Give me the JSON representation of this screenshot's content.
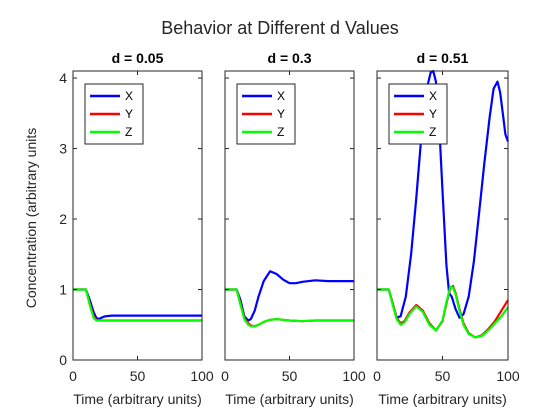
{
  "figure_title": "Behavior at Different d Values",
  "colors": {
    "X": "#0000ff",
    "Y": "#ff0000",
    "Z": "#00ff00",
    "axis": "#262626"
  },
  "chart_data": [
    {
      "type": "line",
      "title": "d = 0.05",
      "xlabel": "Time (arbitrary units)",
      "ylabel": "Concentration (arbitrary units",
      "xlim": [
        0,
        100
      ],
      "ylim": [
        0,
        4.1
      ],
      "xticks": [
        "0",
        "50",
        "100"
      ],
      "yticks": [
        "0",
        "1",
        "2",
        "3",
        "4"
      ],
      "legend_position": "top-left",
      "series": [
        {
          "name": "X",
          "x": [
            0,
            10,
            13,
            16,
            18,
            20,
            22,
            25,
            30,
            40,
            60,
            80,
            100
          ],
          "y": [
            1,
            1,
            0.85,
            0.68,
            0.6,
            0.58,
            0.6,
            0.62,
            0.63,
            0.63,
            0.63,
            0.63,
            0.63
          ]
        },
        {
          "name": "Y",
          "x": [
            0,
            10,
            13,
            16,
            18,
            20,
            22,
            25,
            30,
            40,
            60,
            80,
            100
          ],
          "y": [
            1,
            1,
            0.8,
            0.62,
            0.57,
            0.56,
            0.56,
            0.56,
            0.56,
            0.56,
            0.56,
            0.56,
            0.56
          ]
        },
        {
          "name": "Z",
          "x": [
            0,
            10,
            13,
            16,
            18,
            20,
            22,
            25,
            30,
            40,
            60,
            80,
            100
          ],
          "y": [
            1,
            1,
            0.78,
            0.6,
            0.56,
            0.56,
            0.56,
            0.56,
            0.56,
            0.56,
            0.56,
            0.56,
            0.56
          ]
        }
      ]
    },
    {
      "type": "line",
      "title": "d = 0.3",
      "xlabel": "Time (arbitrary units)",
      "ylabel": "",
      "xlim": [
        0,
        100
      ],
      "ylim": [
        0,
        4.1
      ],
      "xticks": [
        "0",
        "50",
        "100"
      ],
      "yticks": [],
      "legend_position": "top-left",
      "series": [
        {
          "name": "X",
          "x": [
            0,
            9,
            12,
            15,
            18,
            20,
            23,
            26,
            30,
            35,
            40,
            45,
            50,
            55,
            60,
            70,
            80,
            90,
            100
          ],
          "y": [
            1,
            1,
            0.85,
            0.62,
            0.56,
            0.58,
            0.7,
            0.9,
            1.12,
            1.26,
            1.22,
            1.14,
            1.09,
            1.09,
            1.11,
            1.13,
            1.12,
            1.12,
            1.12
          ]
        },
        {
          "name": "Y",
          "x": [
            0,
            9,
            12,
            15,
            18,
            20,
            23,
            26,
            30,
            35,
            40,
            45,
            50,
            60,
            70,
            80,
            90,
            100
          ],
          "y": [
            1,
            1,
            0.8,
            0.6,
            0.52,
            0.49,
            0.48,
            0.5,
            0.54,
            0.57,
            0.58,
            0.57,
            0.56,
            0.55,
            0.56,
            0.56,
            0.56,
            0.56
          ]
        },
        {
          "name": "Z",
          "x": [
            0,
            9,
            12,
            15,
            18,
            20,
            23,
            26,
            30,
            35,
            40,
            45,
            50,
            60,
            70,
            80,
            90,
            100
          ],
          "y": [
            1,
            1,
            0.78,
            0.58,
            0.5,
            0.48,
            0.48,
            0.5,
            0.54,
            0.57,
            0.58,
            0.57,
            0.56,
            0.55,
            0.56,
            0.56,
            0.56,
            0.56
          ]
        }
      ]
    },
    {
      "type": "line",
      "title": "d = 0.51",
      "xlabel": "Time (arbitrary units)",
      "ylabel": "",
      "xlim": [
        0,
        100
      ],
      "ylim": [
        0,
        4.1
      ],
      "xticks": [
        "0",
        "50",
        "100"
      ],
      "yticks": [],
      "legend_position": "top-left",
      "series": [
        {
          "name": "X",
          "x": [
            0,
            9,
            12,
            15,
            18,
            22,
            26,
            30,
            34,
            38,
            41,
            43,
            45,
            47,
            50,
            53,
            55,
            57,
            60,
            63,
            66,
            70,
            74,
            78,
            82,
            86,
            89,
            92,
            94,
            96,
            98,
            100
          ],
          "y": [
            1,
            1,
            0.8,
            0.6,
            0.62,
            0.9,
            1.5,
            2.3,
            3.2,
            3.85,
            4.08,
            4.1,
            3.95,
            3.5,
            2.4,
            1.35,
            0.95,
            0.9,
            0.72,
            0.6,
            0.65,
            0.9,
            1.4,
            2.1,
            2.8,
            3.45,
            3.85,
            3.95,
            3.8,
            3.5,
            3.2,
            3.1
          ]
        },
        {
          "name": "Y",
          "x": [
            0,
            9,
            12,
            15,
            18,
            21,
            25,
            30,
            35,
            40,
            45,
            50,
            53,
            56,
            58,
            60,
            63,
            66,
            70,
            75,
            80,
            85,
            90,
            95,
            100
          ],
          "y": [
            1,
            1,
            0.8,
            0.6,
            0.52,
            0.55,
            0.68,
            0.78,
            0.7,
            0.52,
            0.42,
            0.55,
            0.8,
            1.02,
            1.05,
            0.95,
            0.72,
            0.52,
            0.38,
            0.32,
            0.35,
            0.44,
            0.55,
            0.7,
            0.85
          ]
        },
        {
          "name": "Z",
          "x": [
            0,
            9,
            12,
            15,
            18,
            21,
            25,
            30,
            35,
            40,
            45,
            50,
            53,
            56,
            58,
            60,
            63,
            66,
            70,
            75,
            80,
            85,
            90,
            95,
            100
          ],
          "y": [
            1,
            1,
            0.78,
            0.58,
            0.5,
            0.53,
            0.66,
            0.76,
            0.68,
            0.5,
            0.42,
            0.56,
            0.82,
            1.04,
            1.03,
            0.93,
            0.7,
            0.5,
            0.37,
            0.32,
            0.34,
            0.42,
            0.52,
            0.62,
            0.75
          ]
        }
      ]
    }
  ]
}
